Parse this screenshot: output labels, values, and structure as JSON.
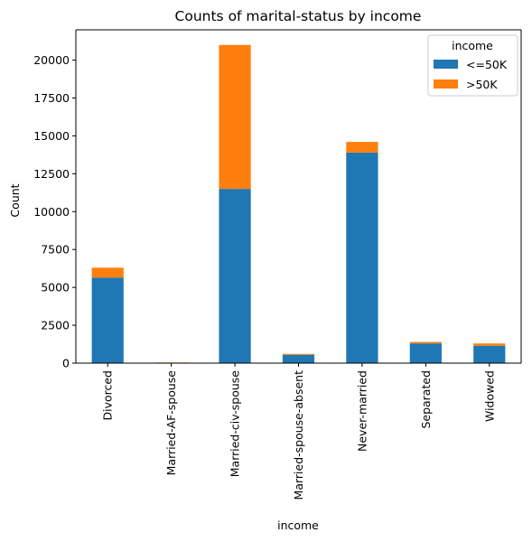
{
  "chart_data": {
    "type": "bar",
    "stacked": true,
    "title": "Counts of marital-status by income",
    "xlabel": "income",
    "ylabel": "Count",
    "categories": [
      "Divorced",
      "Married-AF-spouse",
      "Married-civ-spouse",
      "Married-spouse-absent",
      "Never-married",
      "Separated",
      "Widowed"
    ],
    "series": [
      {
        "name": "<=50K",
        "color": "#1f77b4",
        "values": [
          5650,
          25,
          11500,
          550,
          13900,
          1300,
          1150
        ]
      },
      {
        "name": ">50K",
        "color": "#ff7f0e",
        "values": [
          650,
          15,
          9500,
          60,
          700,
          100,
          150
        ]
      }
    ],
    "ylim": [
      0,
      22000
    ],
    "yticks": [
      0,
      2500,
      5000,
      7500,
      10000,
      12500,
      15000,
      17500,
      20000
    ],
    "legend": {
      "title": "income",
      "position": "top-right"
    },
    "grid": false
  }
}
